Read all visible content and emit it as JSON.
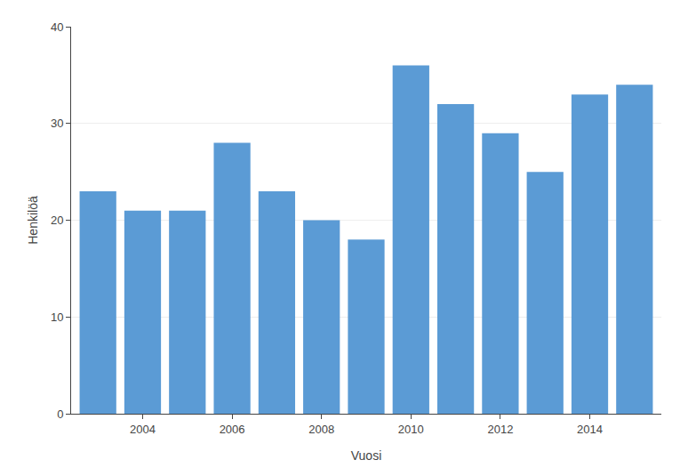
{
  "chart_data": {
    "type": "bar",
    "xlabel": "Vuosi",
    "ylabel": "Henkilöä",
    "x": [
      2003,
      2004,
      2005,
      2006,
      2007,
      2008,
      2009,
      2010,
      2011,
      2012,
      2013,
      2014,
      2015
    ],
    "values": [
      23,
      21,
      21,
      28,
      23,
      20,
      18,
      36,
      32,
      29,
      25,
      33,
      34
    ],
    "color": "#5b9bd5",
    "xlim": [
      2002.4,
      2015.6
    ],
    "xticks": [
      2004,
      2006,
      2008,
      2010,
      2012,
      2014
    ],
    "ylim": [
      0,
      40
    ],
    "yticks": [
      0,
      10,
      20,
      30,
      40
    ],
    "grid": true
  }
}
